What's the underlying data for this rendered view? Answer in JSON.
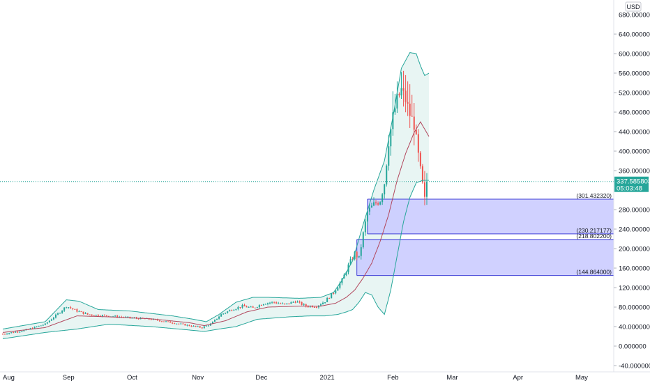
{
  "currency_button": "USD",
  "chart_data": {
    "type": "candlestick",
    "currency": "USD",
    "ylim": [
      -40,
      690
    ],
    "y_ticks": [
      {
        "value": 640,
        "label": "640.000000"
      },
      {
        "value": 600,
        "label": "600.000000"
      },
      {
        "value": 560,
        "label": "560.000000"
      },
      {
        "value": 520,
        "label": "520.000000"
      },
      {
        "value": 480,
        "label": "480.000000"
      },
      {
        "value": 440,
        "label": "440.000000"
      },
      {
        "value": 400,
        "label": "400.000000"
      },
      {
        "value": 360,
        "label": "360.000000"
      },
      {
        "value": 280,
        "label": "280.000000"
      },
      {
        "value": 240,
        "label": "240.000000"
      },
      {
        "value": 200,
        "label": "200.000000"
      },
      {
        "value": 160,
        "label": "160.000000"
      },
      {
        "value": 120,
        "label": "120.000000"
      },
      {
        "value": 80,
        "label": "80.000000"
      },
      {
        "value": 40,
        "label": "40.000000"
      },
      {
        "value": 0,
        "label": "0.000000"
      },
      {
        "value": -40,
        "label": "-40.000000"
      }
    ],
    "y_top_partial_label": "680.000000",
    "x_ticks": [
      {
        "day": 0,
        "label": "Aug"
      },
      {
        "day": 31,
        "label": "Sep"
      },
      {
        "day": 61,
        "label": "Oct"
      },
      {
        "day": 92,
        "label": "Nov"
      },
      {
        "day": 122,
        "label": "Dec"
      },
      {
        "day": 153,
        "label": "2021"
      },
      {
        "day": 184,
        "label": "Feb"
      },
      {
        "day": 212,
        "label": "Mar"
      },
      {
        "day": 243,
        "label": "Apr"
      },
      {
        "day": 273,
        "label": "May"
      }
    ],
    "current_price": {
      "value": 337.585803,
      "label": "337.585803",
      "countdown": "05:03:48"
    },
    "colors": {
      "up": "#26a69a",
      "down": "#ef5350",
      "band_fill": "#e8f5f3",
      "band_line": "#26a69a",
      "basis": "#b2475d",
      "zone_fill": "#c8c9ff",
      "zone_line": "#3f3fd6",
      "price_line": "#26a69a"
    },
    "zones": [
      {
        "top": 301.43232,
        "bottom": 230.217177,
        "day_start": 172,
        "top_label": "(301.432320)",
        "bottom_label": "(230.217177)"
      },
      {
        "top": 218.8022,
        "bottom": 144.864,
        "day_start": 167,
        "top_label": "(218.802200)",
        "bottom_label": "(144.864000)"
      }
    ],
    "price_anchors": [
      [
        0,
        25
      ],
      [
        10,
        32
      ],
      [
        20,
        45
      ],
      [
        27,
        70
      ],
      [
        30,
        82
      ],
      [
        35,
        72
      ],
      [
        40,
        65
      ],
      [
        50,
        62
      ],
      [
        60,
        58
      ],
      [
        70,
        55
      ],
      [
        80,
        48
      ],
      [
        88,
        42
      ],
      [
        94,
        38
      ],
      [
        98,
        45
      ],
      [
        103,
        65
      ],
      [
        108,
        75
      ],
      [
        113,
        82
      ],
      [
        118,
        78
      ],
      [
        123,
        88
      ],
      [
        128,
        90
      ],
      [
        133,
        85
      ],
      [
        138,
        92
      ],
      [
        143,
        82
      ],
      [
        148,
        82
      ],
      [
        152,
        92
      ],
      [
        156,
        110
      ],
      [
        160,
        135
      ],
      [
        163,
        165
      ],
      [
        166,
        190
      ],
      [
        168,
        180
      ],
      [
        170,
        230
      ],
      [
        172,
        275
      ],
      [
        175,
        290
      ],
      [
        178,
        300
      ],
      [
        180,
        335
      ],
      [
        182,
        420
      ],
      [
        184,
        470
      ],
      [
        186,
        505
      ],
      [
        188,
        525
      ],
      [
        190,
        505
      ],
      [
        192,
        475
      ],
      [
        194,
        455
      ],
      [
        196,
        390
      ],
      [
        198,
        330
      ],
      [
        199,
        300
      ],
      [
        200,
        337.585803
      ]
    ],
    "basis_anchors": [
      [
        0,
        28
      ],
      [
        20,
        38
      ],
      [
        35,
        62
      ],
      [
        50,
        60
      ],
      [
        70,
        56
      ],
      [
        88,
        48
      ],
      [
        95,
        42
      ],
      [
        105,
        52
      ],
      [
        115,
        70
      ],
      [
        125,
        80
      ],
      [
        140,
        82
      ],
      [
        150,
        82
      ],
      [
        157,
        88
      ],
      [
        162,
        100
      ],
      [
        166,
        115
      ],
      [
        170,
        140
      ],
      [
        174,
        170
      ],
      [
        178,
        215
      ],
      [
        182,
        270
      ],
      [
        186,
        340
      ],
      [
        190,
        395
      ],
      [
        194,
        438
      ],
      [
        197,
        460
      ],
      [
        199,
        445
      ],
      [
        201,
        430
      ]
    ],
    "upper_band_anchors": [
      [
        0,
        35
      ],
      [
        20,
        50
      ],
      [
        30,
        95
      ],
      [
        36,
        92
      ],
      [
        45,
        75
      ],
      [
        60,
        72
      ],
      [
        80,
        62
      ],
      [
        90,
        55
      ],
      [
        96,
        50
      ],
      [
        102,
        65
      ],
      [
        110,
        90
      ],
      [
        118,
        100
      ],
      [
        125,
        100
      ],
      [
        140,
        98
      ],
      [
        150,
        100
      ],
      [
        156,
        110
      ],
      [
        160,
        135
      ],
      [
        165,
        175
      ],
      [
        170,
        250
      ],
      [
        175,
        320
      ],
      [
        180,
        380
      ],
      [
        184,
        470
      ],
      [
        188,
        570
      ],
      [
        192,
        602
      ],
      [
        195,
        600
      ],
      [
        197,
        575
      ],
      [
        199,
        555
      ],
      [
        201,
        560
      ]
    ],
    "lower_band_anchors": [
      [
        0,
        15
      ],
      [
        20,
        28
      ],
      [
        35,
        35
      ],
      [
        50,
        45
      ],
      [
        70,
        40
      ],
      [
        88,
        33
      ],
      [
        95,
        30
      ],
      [
        102,
        35
      ],
      [
        110,
        40
      ],
      [
        120,
        55
      ],
      [
        135,
        60
      ],
      [
        145,
        62
      ],
      [
        152,
        62
      ],
      [
        158,
        65
      ],
      [
        162,
        70
      ],
      [
        165,
        75
      ],
      [
        168,
        90
      ],
      [
        171,
        110
      ],
      [
        174,
        105
      ],
      [
        177,
        80
      ],
      [
        180,
        65
      ],
      [
        183,
        115
      ],
      [
        186,
        185
      ],
      [
        189,
        255
      ],
      [
        192,
        305
      ],
      [
        195,
        335
      ],
      [
        198,
        340
      ],
      [
        201,
        340
      ]
    ]
  }
}
